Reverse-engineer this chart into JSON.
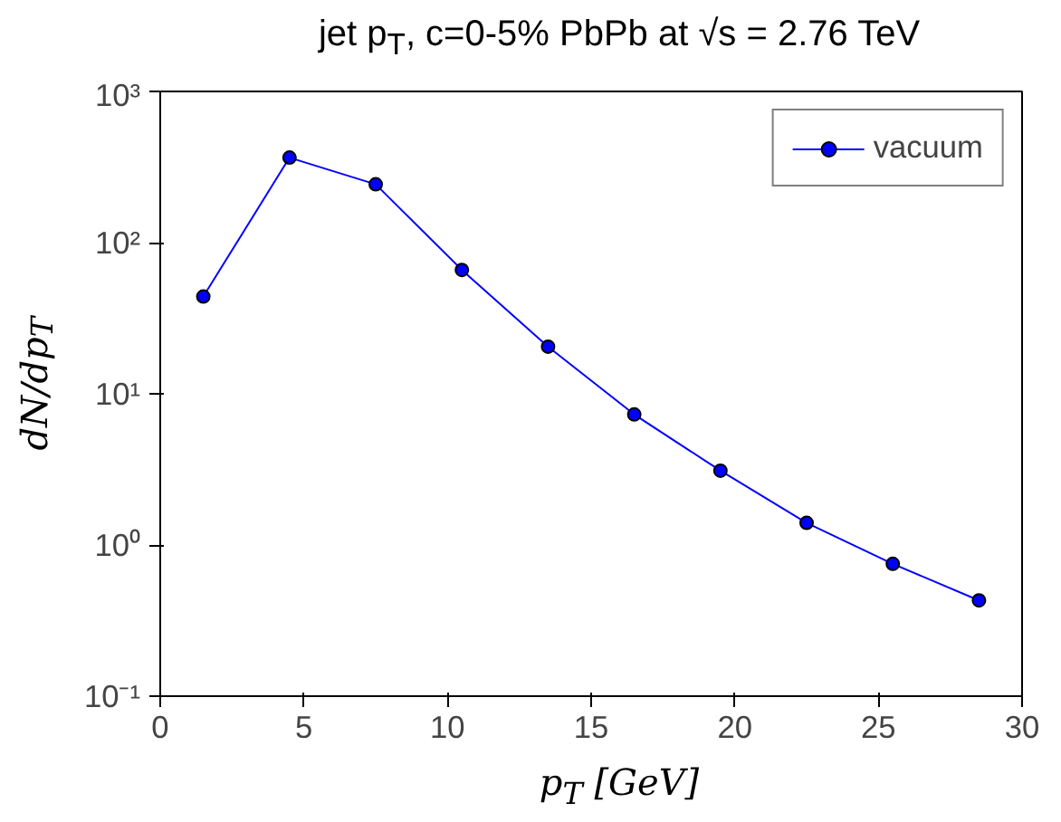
{
  "chart_data": {
    "type": "line",
    "title": "jet p$_{T}$, c=0-5% PbPb at √s = 2.76 TeV",
    "xlabel": "p$_{T}$ [GeV]",
    "ylabel": "dN/dp$_{T}$",
    "x": [
      1.5,
      4.5,
      7.5,
      10.5,
      13.5,
      16.5,
      19.5,
      22.5,
      25.5,
      28.5
    ],
    "series": [
      {
        "name": "vacuum",
        "color": "#0000ff",
        "values": [
          44,
          365,
          243,
          66,
          20.5,
          7.3,
          3.1,
          1.4,
          0.75,
          0.43
        ]
      }
    ],
    "xlim": [
      0,
      30
    ],
    "xticks": [
      0,
      5,
      10,
      15,
      20,
      25,
      30
    ],
    "ylim": [
      0.1,
      1000
    ],
    "yticks": [
      {
        "value": 0.1,
        "label": "10⁻¹"
      },
      {
        "value": 1,
        "label": "10⁰"
      },
      {
        "value": 10,
        "label": "10¹"
      },
      {
        "value": 100,
        "label": "10²"
      },
      {
        "value": 1000,
        "label": "10³"
      }
    ],
    "log": "y",
    "grid": false,
    "legend": "top right",
    "marker": "circle",
    "line_style": "solid"
  }
}
